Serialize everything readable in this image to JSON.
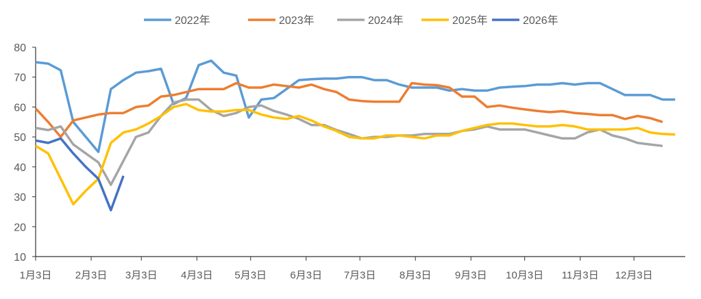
{
  "chart_data": {
    "type": "line",
    "title": "",
    "xlabel": "",
    "ylabel": "",
    "ylim": [
      10,
      80
    ],
    "yticks": [
      10,
      20,
      30,
      40,
      50,
      60,
      70,
      80
    ],
    "xtick_labels": [
      "1月3日",
      "2月3日",
      "3月3日",
      "4月3日",
      "5月3日",
      "6月3日",
      "7月3日",
      "8月3日",
      "9月3日",
      "10月3日",
      "11月3日",
      "12月3日"
    ],
    "x_frequency": "weekly, starting 1月3日",
    "grid": false,
    "legend_position": "top",
    "series": [
      {
        "name": "2022年",
        "color": "#5B9BD5",
        "values": [
          75,
          74.5,
          72.3,
          55,
          50,
          45,
          66,
          69,
          71.5,
          72,
          72.8,
          61,
          63,
          74,
          75.5,
          71.5,
          70.5,
          56.5,
          62.5,
          63,
          66,
          69,
          69.3,
          69.5,
          69.5,
          70,
          70,
          69,
          69,
          67.5,
          66.5,
          66.5,
          66.5,
          65.5,
          66,
          65.5,
          65.5,
          66.5,
          66.8,
          67,
          67.5,
          67.5,
          68,
          67.5,
          68,
          68,
          66,
          64,
          64,
          64,
          62.5,
          62.5
        ]
      },
      {
        "name": "2023年",
        "color": "#ED7D31",
        "values": [
          59.5,
          55,
          50,
          55.5,
          56.5,
          57.5,
          58,
          58,
          60,
          60.5,
          63.5,
          64,
          65,
          66,
          66,
          66,
          68,
          66.5,
          66.5,
          67.5,
          67,
          66.5,
          67.5,
          66,
          65,
          62.5,
          62,
          61.8,
          61.8,
          61.8,
          68,
          67.5,
          67.3,
          66.5,
          63.5,
          63.5,
          60,
          60.5,
          59.8,
          59.2,
          58.7,
          58.3,
          58.6,
          58,
          57.7,
          57.3,
          57.3,
          56,
          57,
          56.3,
          55
        ]
      },
      {
        "name": "2024年",
        "color": "#A5A5A5",
        "values": [
          53,
          52.3,
          53.5,
          47.5,
          44.5,
          41.5,
          34,
          42,
          50,
          51.5,
          57,
          61.5,
          62.5,
          62.5,
          59,
          57,
          58,
          60,
          60.5,
          58.7,
          57.5,
          56,
          54,
          54,
          52.3,
          51,
          49.5,
          50,
          50,
          50.5,
          50.5,
          51,
          51,
          51,
          52,
          52.5,
          53.5,
          52.5,
          52.5,
          52.5,
          51.5,
          50.5,
          49.5,
          49.5,
          51.5,
          52.5,
          50.5,
          49.5,
          48,
          47.5,
          47
        ]
      },
      {
        "name": "2025年",
        "color": "#FFC000",
        "values": [
          47,
          44.5,
          36,
          27.5,
          32,
          36,
          48,
          51.5,
          52.5,
          54.5,
          57,
          60,
          61,
          59,
          58.5,
          58.5,
          59,
          59,
          57.5,
          56.5,
          56,
          57,
          55.5,
          53.5,
          52,
          50,
          49.5,
          49.5,
          50.5,
          50.5,
          50,
          49.5,
          50.5,
          50.5,
          52,
          53,
          54,
          54.5,
          54.5,
          54,
          53.5,
          53.5,
          54,
          53.5,
          52.5,
          52.5,
          52.5,
          52.5,
          53,
          51.5,
          51,
          50.8
        ]
      },
      {
        "name": "2026年",
        "color": "#4472C4",
        "values": [
          48.8,
          48,
          49.5,
          44.5,
          40,
          36,
          25.5,
          37
        ]
      }
    ]
  }
}
